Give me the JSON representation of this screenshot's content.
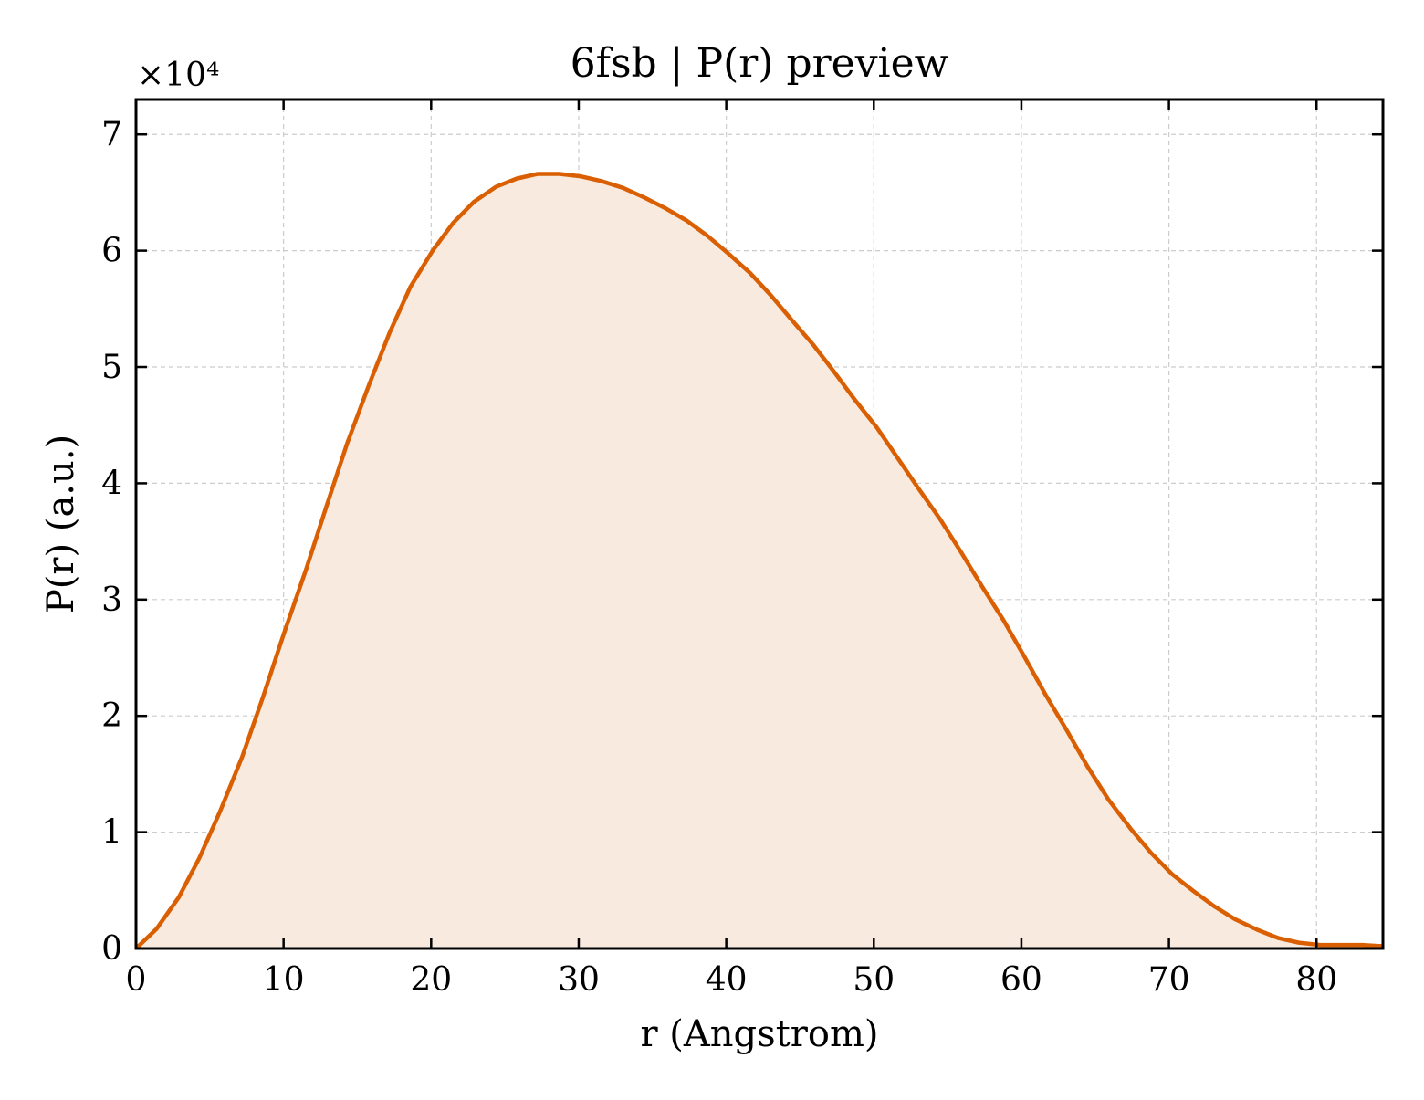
{
  "chart_data": {
    "type": "area",
    "title": "6fsb | P(r) preview",
    "xlabel": "r (Angstrom)",
    "ylabel": "P(r) (a.u.)",
    "y_multiplier_label": "×10⁴",
    "y_multiplier": 10000,
    "xlim": [
      0,
      84.5
    ],
    "ylim": [
      0,
      73000
    ],
    "x_ticks": [
      0,
      10,
      20,
      30,
      40,
      50,
      60,
      70,
      80
    ],
    "x_tick_labels": [
      "0",
      "10",
      "20",
      "30",
      "40",
      "50",
      "60",
      "70",
      "80"
    ],
    "y_ticks": [
      0,
      10000,
      20000,
      30000,
      40000,
      50000,
      60000,
      70000
    ],
    "y_tick_labels": [
      "0",
      "1",
      "2",
      "3",
      "4",
      "5",
      "6",
      "7"
    ],
    "grid": true,
    "line_color": "#d95f02",
    "fill_color": "#f9eadf",
    "series": [
      {
        "x": [
          0,
          1.4,
          2.9,
          4.3,
          5.7,
          7.2,
          8.6,
          10.0,
          11.5,
          12.9,
          14.3,
          15.8,
          17.2,
          18.6,
          20.1,
          21.5,
          22.9,
          24.4,
          25.8,
          27.2,
          28.7,
          30.1,
          31.5,
          33.0,
          34.4,
          35.8,
          37.3,
          38.7,
          40.1,
          41.6,
          43.0,
          44.4,
          45.9,
          47.3,
          48.7,
          50.2,
          51.6,
          53.0,
          54.5,
          55.9,
          57.3,
          58.8,
          60.2,
          61.6,
          63.1,
          64.5,
          65.9,
          67.4,
          68.8,
          70.2,
          71.7,
          73.1,
          74.5,
          76.0,
          77.4,
          78.8,
          80.3,
          81.7,
          83.1,
          84.5
        ],
        "y": [
          0,
          1700,
          4400,
          7800,
          11800,
          16500,
          21600,
          27000,
          32500,
          38000,
          43400,
          48500,
          53000,
          56900,
          60000,
          62400,
          64200,
          65500,
          66200,
          66600,
          66600,
          66400,
          66000,
          65400,
          64600,
          63700,
          62600,
          61300,
          59800,
          58100,
          56200,
          54100,
          51900,
          49600,
          47200,
          44800,
          42200,
          39600,
          36900,
          34100,
          31200,
          28200,
          25100,
          21900,
          18700,
          15600,
          12800,
          10300,
          8200,
          6400,
          4900,
          3600,
          2500,
          1600,
          900,
          500,
          300,
          300,
          300,
          200
        ]
      }
    ]
  }
}
